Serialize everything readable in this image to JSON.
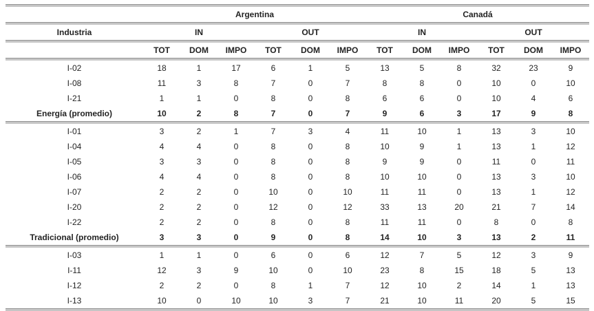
{
  "chart_data": {
    "type": "table",
    "title": "",
    "header": {
      "industry_label": "Industria",
      "country_groups": [
        {
          "label": "Argentina",
          "span": 6
        },
        {
          "label": "Canadá",
          "span": 6
        }
      ],
      "direction_groups": [
        {
          "label": "IN",
          "span": 3
        },
        {
          "label": "OUT",
          "span": 3
        },
        {
          "label": "IN",
          "span": 3
        },
        {
          "label": "OUT",
          "span": 3
        }
      ],
      "measure_labels": [
        "TOT",
        "DOM",
        "IMPO",
        "TOT",
        "DOM",
        "IMPO",
        "TOT",
        "DOM",
        "IMPO",
        "TOT",
        "DOM",
        "IMPO"
      ]
    },
    "sections": [
      {
        "rows": [
          {
            "label": "I-02",
            "bold": false,
            "values": [
              18,
              1,
              17,
              6,
              1,
              5,
              13,
              5,
              8,
              32,
              23,
              9
            ]
          },
          {
            "label": "I-08",
            "bold": false,
            "values": [
              11,
              3,
              8,
              7,
              0,
              7,
              8,
              8,
              0,
              10,
              0,
              10
            ]
          },
          {
            "label": "I-21",
            "bold": false,
            "values": [
              1,
              1,
              0,
              8,
              0,
              8,
              6,
              6,
              0,
              10,
              4,
              6
            ]
          },
          {
            "label": "Energía (promedio)",
            "bold": true,
            "values": [
              10,
              2,
              8,
              7,
              0,
              7,
              9,
              6,
              3,
              17,
              9,
              8
            ]
          }
        ]
      },
      {
        "rows": [
          {
            "label": "I-01",
            "bold": false,
            "values": [
              3,
              2,
              1,
              7,
              3,
              4,
              11,
              10,
              1,
              13,
              3,
              10
            ]
          },
          {
            "label": "I-04",
            "bold": false,
            "values": [
              4,
              4,
              0,
              8,
              0,
              8,
              10,
              9,
              1,
              13,
              1,
              12
            ]
          },
          {
            "label": "I-05",
            "bold": false,
            "values": [
              3,
              3,
              0,
              8,
              0,
              8,
              9,
              9,
              0,
              11,
              0,
              11
            ]
          },
          {
            "label": "I-06",
            "bold": false,
            "values": [
              4,
              4,
              0,
              8,
              0,
              8,
              10,
              10,
              0,
              13,
              3,
              10
            ]
          },
          {
            "label": "I-07",
            "bold": false,
            "values": [
              2,
              2,
              0,
              10,
              0,
              10,
              11,
              11,
              0,
              13,
              1,
              12
            ]
          },
          {
            "label": "I-20",
            "bold": false,
            "values": [
              2,
              2,
              0,
              12,
              0,
              12,
              33,
              13,
              20,
              21,
              7,
              14
            ]
          },
          {
            "label": "I-22",
            "bold": false,
            "values": [
              2,
              2,
              0,
              8,
              0,
              8,
              11,
              11,
              0,
              8,
              0,
              8
            ]
          },
          {
            "label": "Tradicional (promedio)",
            "bold": true,
            "values": [
              3,
              3,
              0,
              9,
              0,
              8,
              14,
              10,
              3,
              13,
              2,
              11
            ]
          }
        ]
      },
      {
        "rows": [
          {
            "label": "I-03",
            "bold": false,
            "values": [
              1,
              1,
              0,
              6,
              0,
              6,
              12,
              7,
              5,
              12,
              3,
              9
            ]
          },
          {
            "label": "I-11",
            "bold": false,
            "values": [
              12,
              3,
              9,
              10,
              0,
              10,
              23,
              8,
              15,
              18,
              5,
              13
            ]
          },
          {
            "label": "I-12",
            "bold": false,
            "values": [
              2,
              2,
              0,
              8,
              1,
              7,
              12,
              10,
              2,
              14,
              1,
              13
            ]
          },
          {
            "label": "I-13",
            "bold": false,
            "values": [
              10,
              0,
              10,
              10,
              3,
              7,
              21,
              10,
              11,
              20,
              5,
              15
            ]
          }
        ]
      }
    ],
    "layout": {
      "grid": "horizontal-rules-only",
      "legend_position": "none"
    },
    "colors": {
      "rule_dark": "#949494",
      "rule_light": "#c6c6c6",
      "text": "#232323",
      "background": "#ffffff"
    }
  }
}
